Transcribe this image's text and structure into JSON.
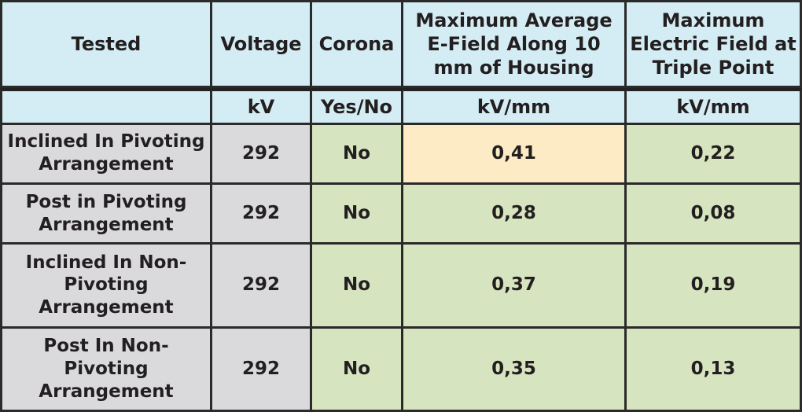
{
  "table": {
    "headers": [
      "Tested",
      "Voltage",
      "Corona",
      "Maximum Average E-Field Along 10 mm of Housing",
      "Maximum Electric Field at Triple Point"
    ],
    "units": [
      "",
      "kV",
      "Yes/No",
      "kV/mm",
      "kV/mm"
    ],
    "rows": [
      {
        "tested": "Inclined In Pivoting Arrangement",
        "voltage": "292",
        "corona": "No",
        "avg_field": "0,41",
        "triple_point": "0,22"
      },
      {
        "tested": "Post in Pivoting Arrangement",
        "voltage": "292",
        "corona": "No",
        "avg_field": "0,28",
        "triple_point": "0,08"
      },
      {
        "tested": "Inclined In Non-Pivoting Arrangement",
        "voltage": "292",
        "corona": "No",
        "avg_field": "0,37",
        "triple_point": "0,19"
      },
      {
        "tested": "Post In Non-Pivoting Arrangement",
        "voltage": "292",
        "corona": "No",
        "avg_field": "0,35",
        "triple_point": "0,13"
      }
    ]
  },
  "colors": {
    "header_bg": "#d4ecf3",
    "label_bg": "#dadadc",
    "value_bg": "#d6e4bf",
    "highlight_bg": "#fcebc4",
    "border": "#222222"
  }
}
